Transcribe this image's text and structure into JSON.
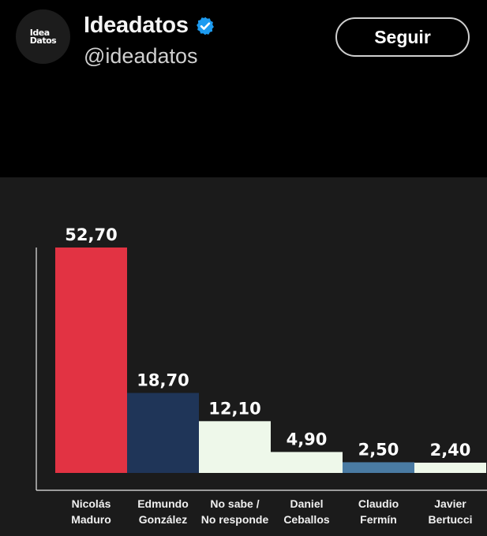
{
  "profile": {
    "avatar_logo_line1": "Idea",
    "avatar_logo_line2": "Datos",
    "display_name": "Ideadatos",
    "handle": "@ideadatos",
    "verified_icon": "verified-badge-icon",
    "follow_label": "Seguir"
  },
  "colors": {
    "background": "#000000",
    "chart_background": "#1b1b1b",
    "maduro": "#e23343",
    "gonzalez": "#1f3558",
    "no_sabe": "#eef8ea",
    "ceballos": "#eef8ea",
    "fermin": "#4a7ba3",
    "bertucci": "#eef8ea",
    "verified": "#1d9bf0"
  },
  "chart_data": {
    "type": "bar",
    "categories": [
      [
        "Nicolás",
        "Maduro"
      ],
      [
        "Edmundo",
        "González"
      ],
      [
        "No sabe /",
        "No responde"
      ],
      [
        "Daniel",
        "Ceballos"
      ],
      [
        "Claudio",
        "Fermín"
      ],
      [
        "Javier",
        "Bertucci"
      ]
    ],
    "values": [
      52.7,
      18.7,
      12.1,
      4.9,
      2.5,
      2.4
    ],
    "value_labels": [
      "52,70",
      "18,70",
      "12,10",
      "4,90",
      "2,50",
      "2,40"
    ],
    "bar_colors": [
      "#e23343",
      "#1f3558",
      "#eef8ea",
      "#eef8ea",
      "#4a7ba3",
      "#eef8ea"
    ],
    "ylim": [
      0,
      52.7
    ],
    "grid": false,
    "title": "",
    "xlabel": "",
    "ylabel": ""
  }
}
